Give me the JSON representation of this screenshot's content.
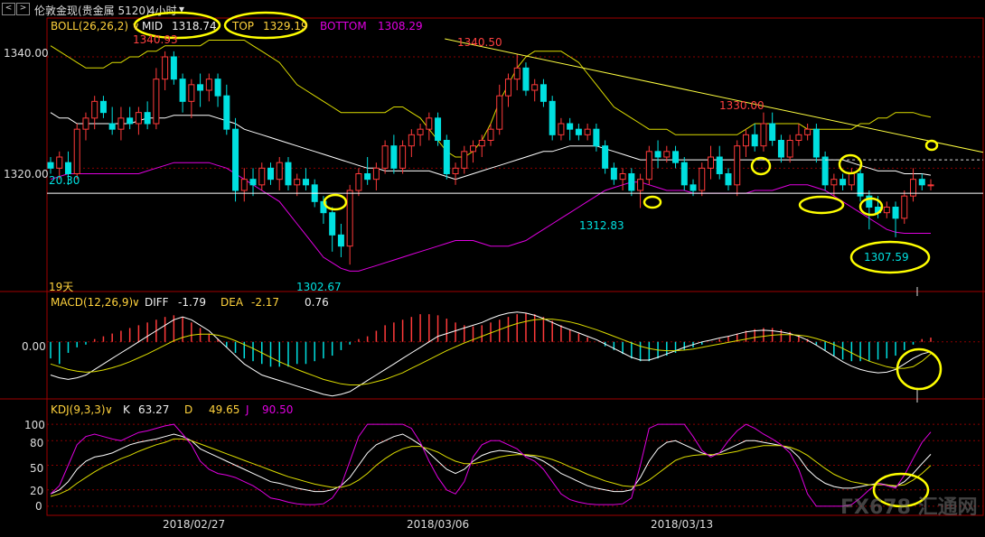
{
  "window": {
    "nav_prev": "<",
    "nav_next": ">",
    "title": "伦敦金现(贵金属 5120)",
    "period": "4小时",
    "period_arrow": "▾"
  },
  "colors": {
    "candle_up": "#ff3a3a",
    "candle_down": "#00e0e0",
    "mid": "#ffffff",
    "top": "#dcdc00",
    "bottom": "#e000e0",
    "trend": "#ffff40",
    "support": "#ffffff",
    "circle": "#ffff00",
    "axis_text": "#dddddd",
    "grid": "#8a0000",
    "frame": "#a00000"
  },
  "boll": {
    "label": "BOLL(26,26,2)",
    "mid_label": "MID",
    "mid_value": "1318.74",
    "top_label": "TOP",
    "top_value": "1329.19",
    "bottom_label": "BOTTOM",
    "bottom_value": "1308.29"
  },
  "macd": {
    "label": "MACD(12,26,9)",
    "diff_label": "DIFF",
    "diff_value": "-1.79",
    "dea_label": "DEA",
    "dea_value": "-2.17",
    "macd_value": "0.76"
  },
  "kdj": {
    "label": "KDJ(9,3,3)",
    "k_label": "K",
    "k_value": "63.27",
    "d_label": "D",
    "d_value": "49.65",
    "j_label": "J",
    "j_value": "90.50"
  },
  "indicator_arrow": "∨",
  "price_axis": {
    "ticks": [
      "1340.00",
      "1320.00"
    ],
    "side_value": "20.30",
    "days_label": "19天"
  },
  "macd_axis": {
    "ticks": [
      "0.00"
    ]
  },
  "kdj_axis": {
    "ticks": [
      "100",
      "80",
      "50",
      "20",
      "0"
    ]
  },
  "dates": [
    "2018/02/27",
    "2018/03/06",
    "2018/03/13"
  ],
  "annotations": {
    "high1": "1340.93",
    "high2": "1340.50",
    "high3": "1330.00",
    "low1": "1302.67",
    "low2": "1312.83",
    "low3": "1307.59"
  },
  "watermark": "FX678 汇通网",
  "chart_data": {
    "type": "candlestick",
    "instrument": "伦敦金现",
    "period": "4小时",
    "price_ylim": [
      1298,
      1346
    ],
    "price_grid": [
      1320,
      1340
    ],
    "support_level": 1315.5,
    "ohlc": [
      [
        1321,
        1322,
        1319,
        1320
      ],
      [
        1320,
        1323,
        1318,
        1322
      ],
      [
        1321,
        1323,
        1317,
        1319
      ],
      [
        1319,
        1328,
        1318,
        1327
      ],
      [
        1327,
        1330,
        1325,
        1329
      ],
      [
        1329,
        1333,
        1327,
        1332
      ],
      [
        1332,
        1333,
        1329,
        1330
      ],
      [
        1328,
        1331,
        1326,
        1327
      ],
      [
        1327,
        1331,
        1325,
        1329
      ],
      [
        1329,
        1331,
        1327,
        1328
      ],
      [
        1328,
        1331,
        1326,
        1330
      ],
      [
        1330,
        1332,
        1327,
        1328
      ],
      [
        1328,
        1338,
        1327,
        1336
      ],
      [
        1336,
        1341,
        1334,
        1340
      ],
      [
        1340,
        1341,
        1335,
        1336
      ],
      [
        1336,
        1337,
        1330,
        1332
      ],
      [
        1332,
        1336,
        1329,
        1335
      ],
      [
        1335,
        1337,
        1331,
        1334
      ],
      [
        1334,
        1337,
        1332,
        1336
      ],
      [
        1336,
        1337,
        1331,
        1333
      ],
      [
        1333,
        1335,
        1326,
        1327
      ],
      [
        1327,
        1329,
        1314,
        1316
      ],
      [
        1316,
        1320,
        1314,
        1318
      ],
      [
        1318,
        1320,
        1315,
        1317
      ],
      [
        1317,
        1321,
        1316,
        1320
      ],
      [
        1320,
        1321,
        1317,
        1318
      ],
      [
        1318,
        1322,
        1316,
        1321
      ],
      [
        1321,
        1322,
        1316,
        1317
      ],
      [
        1317,
        1319,
        1315,
        1318
      ],
      [
        1318,
        1320,
        1316,
        1317
      ],
      [
        1317,
        1318,
        1313,
        1314
      ],
      [
        1314,
        1315,
        1310,
        1312
      ],
      [
        1312,
        1313,
        1305,
        1308
      ],
      [
        1308,
        1310,
        1304,
        1306
      ],
      [
        1306,
        1317,
        1302.67,
        1316
      ],
      [
        1316,
        1320,
        1315,
        1319
      ],
      [
        1319,
        1322,
        1317,
        1318
      ],
      [
        1318,
        1321,
        1316,
        1320
      ],
      [
        1320,
        1325,
        1319,
        1324
      ],
      [
        1324,
        1326,
        1319,
        1320
      ],
      [
        1320,
        1325,
        1319,
        1324
      ],
      [
        1324,
        1327,
        1322,
        1326
      ],
      [
        1326,
        1328,
        1324,
        1327
      ],
      [
        1327,
        1330,
        1325,
        1329
      ],
      [
        1329,
        1330,
        1324,
        1325
      ],
      [
        1325,
        1326,
        1318,
        1319
      ],
      [
        1319,
        1321,
        1317,
        1320
      ],
      [
        1320,
        1324,
        1319,
        1323
      ],
      [
        1323,
        1325,
        1321,
        1324
      ],
      [
        1324,
        1326,
        1322,
        1325
      ],
      [
        1325,
        1328,
        1324,
        1327
      ],
      [
        1327,
        1335,
        1326,
        1333
      ],
      [
        1333,
        1337,
        1331,
        1336
      ],
      [
        1336,
        1340.5,
        1334,
        1338
      ],
      [
        1338,
        1339,
        1333,
        1334
      ],
      [
        1334,
        1336,
        1332,
        1335
      ],
      [
        1335,
        1336,
        1331,
        1332
      ],
      [
        1332,
        1333,
        1325,
        1326
      ],
      [
        1326,
        1329,
        1325,
        1328
      ],
      [
        1328,
        1329,
        1325,
        1327
      ],
      [
        1327,
        1328,
        1325,
        1326
      ],
      [
        1326,
        1328,
        1325,
        1327
      ],
      [
        1327,
        1328,
        1323,
        1324
      ],
      [
        1324,
        1325,
        1319,
        1320
      ],
      [
        1320,
        1321,
        1317,
        1318
      ],
      [
        1318,
        1320,
        1316,
        1319
      ],
      [
        1319,
        1320,
        1315,
        1316
      ],
      [
        1316,
        1319,
        1312.83,
        1318
      ],
      [
        1318,
        1324,
        1317,
        1323
      ],
      [
        1323,
        1325,
        1320,
        1322
      ],
      [
        1322,
        1324,
        1321,
        1323
      ],
      [
        1323,
        1324,
        1320,
        1321
      ],
      [
        1321,
        1322,
        1316,
        1317
      ],
      [
        1317,
        1318,
        1315,
        1316
      ],
      [
        1316,
        1321,
        1315,
        1320
      ],
      [
        1320,
        1324,
        1318,
        1322
      ],
      [
        1322,
        1324,
        1318,
        1319
      ],
      [
        1319,
        1320,
        1316,
        1317
      ],
      [
        1317,
        1325,
        1315,
        1324
      ],
      [
        1324,
        1327,
        1322,
        1326
      ],
      [
        1326,
        1328,
        1323,
        1324
      ],
      [
        1324,
        1330,
        1323,
        1328
      ],
      [
        1328,
        1330,
        1324,
        1325
      ],
      [
        1325,
        1326,
        1321,
        1322
      ],
      [
        1322,
        1326,
        1321,
        1325
      ],
      [
        1325,
        1328,
        1324,
        1326
      ],
      [
        1326,
        1328,
        1325,
        1327
      ],
      [
        1327,
        1328,
        1321,
        1322
      ],
      [
        1322,
        1323,
        1316,
        1317
      ],
      [
        1317,
        1319,
        1315,
        1318
      ],
      [
        1318,
        1319,
        1316,
        1317
      ],
      [
        1317,
        1320,
        1316,
        1319
      ],
      [
        1319,
        1320,
        1314,
        1315
      ],
      [
        1315,
        1316,
        1309,
        1313
      ],
      [
        1313,
        1315,
        1311,
        1312
      ],
      [
        1312,
        1314,
        1311,
        1313
      ],
      [
        1313,
        1314,
        1307.59,
        1311
      ],
      [
        1311,
        1316,
        1310,
        1315
      ],
      [
        1315,
        1320,
        1314,
        1318
      ],
      [
        1318,
        1319,
        1316,
        1317
      ],
      [
        1317,
        1318,
        1316,
        1317
      ]
    ],
    "mid": [
      1330,
      1329,
      1329,
      1328,
      1328,
      1328,
      1328,
      1328,
      1328,
      1328,
      1328.5,
      1329,
      1329,
      1329,
      1329.5,
      1329.5,
      1329.5,
      1329.5,
      1329.5,
      1329,
      1328.5,
      1328,
      1327,
      1326.5,
      1326,
      1325.5,
      1325,
      1324.5,
      1324,
      1323.5,
      1323,
      1322.5,
      1322,
      1321.5,
      1321,
      1320.5,
      1320,
      1320,
      1319.5,
      1319.5,
      1319.5,
      1319.5,
      1319.5,
      1319.5,
      1319,
      1318.5,
      1318,
      1318.5,
      1319,
      1319.5,
      1320,
      1320.5,
      1321,
      1321.5,
      1322,
      1322.5,
      1323,
      1323,
      1323.5,
      1324,
      1324,
      1324,
      1324,
      1323.5,
      1323,
      1322.5,
      1322,
      1321.5,
      1321.5,
      1321.5,
      1321.5,
      1321.5,
      1321.5,
      1321.5,
      1321.5,
      1321.5,
      1321.5,
      1321.5,
      1321.5,
      1321.5,
      1321.5,
      1321.5,
      1321.5,
      1321.5,
      1321.5,
      1321.5,
      1321.5,
      1321.5,
      1321.5,
      1321.5,
      1321.5,
      1321,
      1320.5,
      1320,
      1319.5,
      1319.5,
      1319.5,
      1319,
      1319,
      1319,
      1318.74
    ],
    "top": [
      1342,
      1341,
      1340,
      1339,
      1338,
      1338,
      1338,
      1339,
      1339,
      1340,
      1340,
      1341,
      1341,
      1342,
      1342,
      1342,
      1342,
      1342,
      1343,
      1343,
      1343,
      1343,
      1343,
      1342,
      1341,
      1340,
      1339,
      1337,
      1335,
      1334,
      1333,
      1332,
      1331,
      1330,
      1330,
      1330,
      1330,
      1330,
      1330,
      1331,
      1331,
      1330,
      1329,
      1327,
      1325,
      1323,
      1322,
      1322,
      1323,
      1325,
      1328,
      1332,
      1335,
      1338,
      1340,
      1341,
      1341,
      1341,
      1341,
      1340,
      1339,
      1337,
      1335,
      1333,
      1331,
      1330,
      1329,
      1328,
      1327,
      1327,
      1327,
      1326,
      1326,
      1326,
      1326,
      1326,
      1326,
      1326,
      1326,
      1327,
      1328,
      1328,
      1328,
      1328,
      1328,
      1328,
      1327,
      1327,
      1327,
      1327,
      1327,
      1327,
      1328,
      1328,
      1329,
      1329,
      1330,
      1330,
      1330,
      1329.5,
      1329.19
    ],
    "bottom": [
      1318,
      1318.5,
      1319,
      1319,
      1319,
      1319,
      1319,
      1319,
      1319,
      1319,
      1319,
      1319.5,
      1320,
      1320.5,
      1321,
      1321,
      1321,
      1321,
      1321,
      1320.5,
      1320,
      1319,
      1318,
      1317,
      1316,
      1315,
      1314,
      1312,
      1310,
      1308,
      1306,
      1304,
      1303,
      1302,
      1301.5,
      1301.5,
      1302,
      1302.5,
      1303,
      1303.5,
      1304,
      1304.5,
      1305,
      1305.5,
      1306,
      1306.5,
      1307,
      1307,
      1307,
      1306.5,
      1306,
      1306,
      1306,
      1306.5,
      1307,
      1308,
      1309,
      1310,
      1311,
      1312,
      1313,
      1314,
      1315,
      1316,
      1316.5,
      1317,
      1317.5,
      1317.5,
      1317,
      1316.5,
      1316,
      1316,
      1316,
      1315.5,
      1315.5,
      1315.5,
      1315.5,
      1315.5,
      1315.5,
      1315.5,
      1316,
      1316,
      1316,
      1316.5,
      1317,
      1317,
      1317,
      1316.5,
      1316,
      1315,
      1314,
      1313,
      1312,
      1311,
      1310,
      1309,
      1308.5,
      1308.29,
      1308.29,
      1308.29,
      1308.29
    ],
    "trendline": [
      {
        "bar": 53,
        "price": 1340.5
      },
      {
        "bar": 101,
        "price": 1324.5
      }
    ],
    "macd_ylim": [
      -10,
      6
    ],
    "macd_hist": [
      -3,
      -4,
      -2,
      -1,
      -0.5,
      0.5,
      1,
      1.5,
      2,
      2.5,
      3,
      3.5,
      4,
      4.5,
      4.8,
      4.5,
      3.5,
      2.5,
      1.5,
      0.5,
      -1,
      -2,
      -3,
      -3.5,
      -4,
      -4.5,
      -4.5,
      -4.5,
      -4,
      -4,
      -3.5,
      -3,
      -2.5,
      -1.5,
      -0.5,
      0.5,
      1,
      2,
      3,
      3.5,
      4,
      4.5,
      5,
      5,
      4.8,
      4.2,
      3.5,
      3,
      2.8,
      3,
      3.5,
      4,
      4.5,
      5,
      5.2,
      5,
      4.5,
      3.8,
      3,
      2.2,
      1.5,
      0.8,
      0,
      -0.8,
      -1.5,
      -2.2,
      -3,
      -3.5,
      -3.5,
      -3,
      -2.5,
      -2,
      -1.5,
      -1,
      -0.5,
      0,
      0.5,
      1,
      1.5,
      2,
      2.3,
      2.5,
      2.5,
      2.2,
      1.8,
      1.2,
      0.5,
      -0.5,
      -1.5,
      -2.5,
      -3.2,
      -3.5,
      -3.5,
      -3.5,
      -3.2,
      -3,
      -2.5,
      -1.5,
      -0.5,
      0.5,
      0.76
    ],
    "diff": [
      -6,
      -6.5,
      -6.8,
      -6.5,
      -6,
      -5,
      -4,
      -3,
      -2,
      -1,
      0,
      1,
      2,
      3,
      4,
      4.5,
      4,
      3,
      2,
      0.5,
      -1,
      -2.5,
      -4,
      -5,
      -6,
      -6.5,
      -7,
      -7.5,
      -8,
      -8.5,
      -9,
      -9.5,
      -9.8,
      -9.5,
      -9,
      -8,
      -7,
      -6,
      -5,
      -4,
      -3,
      -2,
      -1,
      0,
      1,
      1.5,
      2,
      2.5,
      3,
      3.5,
      4.2,
      4.8,
      5.2,
      5.4,
      5.2,
      4.8,
      4.2,
      3.5,
      2.8,
      2.2,
      1.6,
      1,
      0.4,
      -0.4,
      -1.2,
      -2,
      -2.8,
      -3.3,
      -3.3,
      -2.8,
      -2.2,
      -1.6,
      -1,
      -0.5,
      0,
      0.3,
      0.7,
      1,
      1.4,
      1.8,
      2,
      2.1,
      2,
      1.8,
      1.5,
      1,
      0.3,
      -0.6,
      -1.6,
      -2.6,
      -3.6,
      -4.4,
      -5,
      -5.4,
      -5.6,
      -5.5,
      -5,
      -4,
      -3,
      -2.2,
      -1.79
    ],
    "dea": [
      -4,
      -4.5,
      -5,
      -5.3,
      -5.5,
      -5.4,
      -5.1,
      -4.7,
      -4.2,
      -3.6,
      -2.9,
      -2.2,
      -1.4,
      -0.6,
      0.2,
      0.8,
      1.2,
      1.4,
      1.4,
      1.2,
      0.8,
      0.2,
      -0.5,
      -1.2,
      -2,
      -2.8,
      -3.6,
      -4.3,
      -5,
      -5.6,
      -6.2,
      -6.8,
      -7.2,
      -7.6,
      -7.8,
      -7.8,
      -7.6,
      -7.2,
      -6.8,
      -6.2,
      -5.6,
      -4.8,
      -4,
      -3.2,
      -2.4,
      -1.6,
      -0.9,
      -0.2,
      0.4,
      1,
      1.6,
      2.2,
      2.8,
      3.3,
      3.7,
      4,
      4.1,
      4.1,
      3.9,
      3.6,
      3.2,
      2.7,
      2.2,
      1.6,
      1,
      0.4,
      -0.2,
      -0.8,
      -1.2,
      -1.5,
      -1.6,
      -1.6,
      -1.5,
      -1.3,
      -1,
      -0.7,
      -0.4,
      -0.1,
      0.2,
      0.5,
      0.8,
      1,
      1.2,
      1.3,
      1.3,
      1.2,
      1,
      0.6,
      0.1,
      -0.5,
      -1.2,
      -2,
      -2.8,
      -3.5,
      -4,
      -4.5,
      -4.8,
      -4.8,
      -4.5,
      -3.5,
      -2.17
    ],
    "kdj_ylim": [
      -10,
      110
    ],
    "kdj_ticks": [
      100,
      80,
      50,
      20,
      0
    ],
    "k": [
      15,
      20,
      30,
      45,
      55,
      60,
      62,
      65,
      70,
      75,
      78,
      80,
      82,
      85,
      88,
      85,
      80,
      70,
      65,
      60,
      55,
      50,
      45,
      40,
      35,
      30,
      28,
      25,
      22,
      20,
      18,
      18,
      20,
      25,
      35,
      50,
      65,
      75,
      80,
      85,
      88,
      82,
      75,
      65,
      55,
      45,
      40,
      45,
      55,
      62,
      66,
      68,
      67,
      65,
      62,
      60,
      55,
      48,
      40,
      35,
      30,
      25,
      22,
      20,
      18,
      18,
      20,
      35,
      55,
      70,
      78,
      80,
      75,
      70,
      65,
      62,
      65,
      70,
      75,
      80,
      80,
      78,
      76,
      74,
      70,
      60,
      45,
      35,
      28,
      24,
      22,
      22,
      24,
      26,
      28,
      26,
      24,
      30,
      40,
      52,
      63.27
    ],
    "d": [
      12,
      15,
      20,
      28,
      35,
      42,
      48,
      53,
      58,
      62,
      67,
      71,
      75,
      78,
      82,
      82,
      80,
      76,
      72,
      68,
      64,
      60,
      56,
      52,
      48,
      44,
      40,
      36,
      33,
      30,
      27,
      25,
      23,
      23,
      26,
      32,
      40,
      50,
      58,
      65,
      70,
      73,
      73,
      70,
      66,
      60,
      55,
      52,
      52,
      54,
      57,
      60,
      62,
      63,
      63,
      62,
      60,
      57,
      53,
      48,
      44,
      39,
      35,
      31,
      28,
      25,
      24,
      26,
      32,
      40,
      48,
      56,
      60,
      62,
      63,
      63,
      63,
      65,
      67,
      70,
      72,
      74,
      74,
      74,
      72,
      68,
      62,
      54,
      46,
      39,
      34,
      30,
      28,
      26,
      26,
      26,
      25,
      26,
      32,
      40,
      49.65
    ],
    "j": [
      15,
      25,
      50,
      75,
      85,
      88,
      85,
      82,
      80,
      85,
      90,
      92,
      95,
      98,
      100,
      88,
      75,
      55,
      45,
      40,
      38,
      35,
      30,
      25,
      18,
      10,
      8,
      5,
      3,
      2,
      2,
      3,
      10,
      25,
      55,
      85,
      100,
      100,
      100,
      100,
      100,
      95,
      78,
      55,
      35,
      20,
      15,
      30,
      60,
      75,
      80,
      80,
      75,
      70,
      60,
      55,
      45,
      30,
      15,
      8,
      5,
      3,
      2,
      2,
      2,
      3,
      10,
      50,
      95,
      100,
      100,
      100,
      100,
      85,
      68,
      60,
      65,
      80,
      92,
      100,
      95,
      88,
      82,
      75,
      65,
      45,
      15,
      0,
      0,
      0,
      0,
      2,
      10,
      20,
      28,
      25,
      22,
      38,
      58,
      78,
      90.5
    ]
  }
}
